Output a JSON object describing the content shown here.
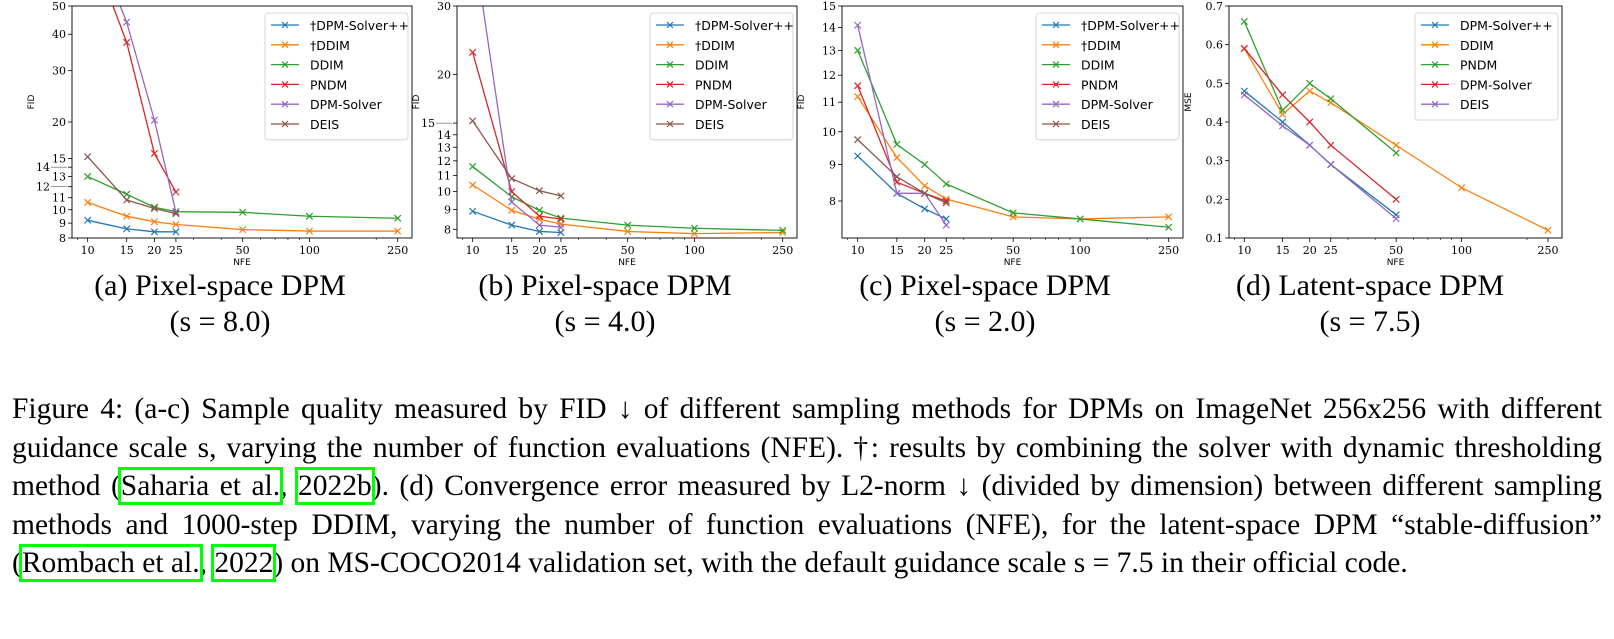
{
  "chart_data": [
    {
      "type": "line",
      "id": "a",
      "ylabel": "FID",
      "xlabel": "NFE",
      "xscale": "log",
      "yscale": "log",
      "xlim": [
        8.5,
        290
      ],
      "ylim": [
        8,
        50
      ],
      "xticks": [
        10,
        15,
        20,
        25,
        50,
        100,
        250
      ],
      "yticks": [
        8,
        9,
        10,
        11,
        12,
        13,
        14,
        15,
        20,
        30,
        40,
        50
      ],
      "legend": "top-right",
      "series": [
        {
          "name": "†DPM-Solver++",
          "color": "#1f77b4",
          "x": [
            10,
            15,
            20,
            25
          ],
          "y": [
            9.2,
            8.6,
            8.4,
            8.4
          ]
        },
        {
          "name": "†DDIM",
          "color": "#ff7f0e",
          "x": [
            10,
            15,
            20,
            25,
            50,
            100,
            250
          ],
          "y": [
            10.6,
            9.5,
            9.1,
            8.9,
            8.55,
            8.45,
            8.45
          ]
        },
        {
          "name": "DDIM",
          "color": "#2ca02c",
          "x": [
            10,
            15,
            20,
            25,
            50,
            100,
            250
          ],
          "y": [
            13.0,
            11.3,
            10.2,
            9.85,
            9.8,
            9.5,
            9.35
          ]
        },
        {
          "name": "PNDM",
          "color": "#d62728",
          "x": [
            10,
            15,
            20,
            25
          ],
          "y": [
            85,
            37.5,
            15.6,
            11.5
          ]
        },
        {
          "name": "DPM-Solver",
          "color": "#9467bd",
          "x": [
            10,
            15,
            20,
            25
          ],
          "y": [
            95,
            44,
            20.3,
            9.8
          ]
        },
        {
          "name": "DEIS",
          "color": "#8c564b",
          "x": [
            10,
            15,
            20,
            25
          ],
          "y": [
            15.2,
            10.8,
            10.1,
            9.7
          ]
        }
      ]
    },
    {
      "type": "line",
      "id": "b",
      "ylabel": "FID",
      "xlabel": "NFE",
      "xscale": "log",
      "yscale": "log",
      "xlim": [
        8.5,
        290
      ],
      "ylim": [
        7.6,
        30
      ],
      "xticks": [
        10,
        15,
        20,
        25,
        50,
        100,
        250
      ],
      "yticks": [
        8,
        9,
        10,
        11,
        12,
        13,
        14,
        15,
        20,
        30
      ],
      "legend": "top-right",
      "series": [
        {
          "name": "†DPM-Solver++",
          "color": "#1f77b4",
          "x": [
            10,
            15,
            20,
            25
          ],
          "y": [
            8.9,
            8.2,
            7.9,
            7.85
          ]
        },
        {
          "name": "†DDIM",
          "color": "#ff7f0e",
          "x": [
            10,
            15,
            20,
            25,
            50,
            100,
            250
          ],
          "y": [
            10.4,
            8.95,
            8.5,
            8.25,
            7.9,
            7.8,
            7.85
          ]
        },
        {
          "name": "DDIM",
          "color": "#2ca02c",
          "x": [
            10,
            15,
            20,
            25,
            50,
            100,
            250
          ],
          "y": [
            11.6,
            9.7,
            8.95,
            8.55,
            8.2,
            8.05,
            7.95
          ]
        },
        {
          "name": "PNDM",
          "color": "#d62728",
          "x": [
            10,
            15,
            20,
            25
          ],
          "y": [
            22.8,
            10.0,
            8.65,
            8.5
          ]
        },
        {
          "name": "DPM-Solver",
          "color": "#9467bd",
          "x": [
            10,
            15,
            20,
            25
          ],
          "y": [
            45,
            9.4,
            8.2,
            8.1
          ]
        },
        {
          "name": "DEIS",
          "color": "#8c564b",
          "x": [
            10,
            15,
            20,
            25
          ],
          "y": [
            15.2,
            10.8,
            10.05,
            9.75
          ]
        }
      ]
    },
    {
      "type": "line",
      "id": "c",
      "ylabel": "FID",
      "xlabel": "NFE",
      "xscale": "log",
      "yscale": "log",
      "xlim": [
        8.5,
        290
      ],
      "ylim": [
        7.1,
        15
      ],
      "xticks": [
        10,
        15,
        20,
        25,
        50,
        100,
        250
      ],
      "yticks": [
        8,
        9,
        10,
        11,
        12,
        13,
        14,
        15
      ],
      "legend": "top-right",
      "series": [
        {
          "name": "†DPM-Solver++",
          "color": "#1f77b4",
          "x": [
            10,
            15,
            20,
            25
          ],
          "y": [
            9.25,
            8.2,
            7.8,
            7.55
          ]
        },
        {
          "name": "†DDIM",
          "color": "#ff7f0e",
          "x": [
            10,
            15,
            20,
            25,
            50,
            100,
            250
          ],
          "y": [
            11.2,
            9.2,
            8.4,
            8.05,
            7.6,
            7.55,
            7.6
          ]
        },
        {
          "name": "DDIM",
          "color": "#2ca02c",
          "x": [
            10,
            15,
            20,
            25,
            50,
            100,
            250
          ],
          "y": [
            13.0,
            9.6,
            9.0,
            8.45,
            7.7,
            7.55,
            7.35
          ]
        },
        {
          "name": "PNDM",
          "color": "#d62728",
          "x": [
            10,
            15,
            20,
            25
          ],
          "y": [
            11.6,
            8.5,
            8.2,
            8.0
          ]
        },
        {
          "name": "DPM-Solver",
          "color": "#9467bd",
          "x": [
            10,
            15,
            20,
            25
          ],
          "y": [
            14.1,
            8.2,
            8.2,
            7.4
          ]
        },
        {
          "name": "DEIS",
          "color": "#8c564b",
          "x": [
            10,
            15,
            20,
            25
          ],
          "y": [
            9.75,
            8.65,
            8.2,
            7.95
          ]
        }
      ]
    },
    {
      "type": "line",
      "id": "d",
      "ylabel": "MSE",
      "xlabel": "NFE",
      "xscale": "log",
      "yscale": "linear",
      "xlim": [
        8.5,
        290
      ],
      "ylim": [
        0.1,
        0.7
      ],
      "xticks": [
        10,
        15,
        20,
        25,
        50,
        100,
        250
      ],
      "yticks": [
        0.1,
        0.2,
        0.3,
        0.4,
        0.5,
        0.6,
        0.7
      ],
      "legend": "top-right",
      "series": [
        {
          "name": "DPM-Solver++",
          "color": "#1f77b4",
          "x": [
            10,
            15,
            20,
            25,
            50
          ],
          "y": [
            0.48,
            0.4,
            0.34,
            0.29,
            0.16
          ]
        },
        {
          "name": "DDIM",
          "color": "#ff7f0e",
          "x": [
            10,
            15,
            20,
            25,
            50,
            100,
            250
          ],
          "y": [
            0.59,
            0.42,
            0.48,
            0.45,
            0.34,
            0.23,
            0.12
          ]
        },
        {
          "name": "PNDM",
          "color": "#2ca02c",
          "x": [
            10,
            15,
            20,
            25,
            50
          ],
          "y": [
            0.66,
            0.43,
            0.5,
            0.46,
            0.32
          ]
        },
        {
          "name": "DPM-Solver",
          "color": "#d62728",
          "x": [
            10,
            15,
            20,
            25,
            50
          ],
          "y": [
            0.59,
            0.47,
            0.4,
            0.34,
            0.2
          ]
        },
        {
          "name": "DEIS",
          "color": "#9467bd",
          "x": [
            10,
            15,
            20,
            25,
            50
          ],
          "y": [
            0.47,
            0.39,
            0.34,
            0.29,
            0.15
          ]
        }
      ]
    }
  ],
  "subcaptions": [
    {
      "title": "(a) Pixel-space DPM",
      "scale": "(s = 8.0)"
    },
    {
      "title": "(b) Pixel-space DPM",
      "scale": "(s = 4.0)"
    },
    {
      "title": "(c) Pixel-space DPM",
      "scale": "(s = 2.0)"
    },
    {
      "title": "(d) Latent-space DPM",
      "scale": "(s = 7.5)"
    }
  ],
  "caption": {
    "label": "Figure 4:",
    "segments": [
      " (a-c) Sample quality measured by FID ↓ of different sampling methods for DPMs on ImageNet 256x256 with different guidance scale s, varying the number of function evaluations (NFE). †: results by combining the solver with dynamic thresholding method (",
      "Saharia et al.",
      ", ",
      "2022b",
      "). (d) Convergence error measured by L2-norm ↓ (divided by dimension) between different sampling methods and 1000-step DDIM, varying the number of function evaluations (NFE), for the latent-space DPM “stable-diffusion” (",
      "Rombach et al.",
      ", ",
      "2022",
      ") on MS-COCO2014 validation set, with the default guidance scale s = 7.5 in their official code."
    ]
  }
}
